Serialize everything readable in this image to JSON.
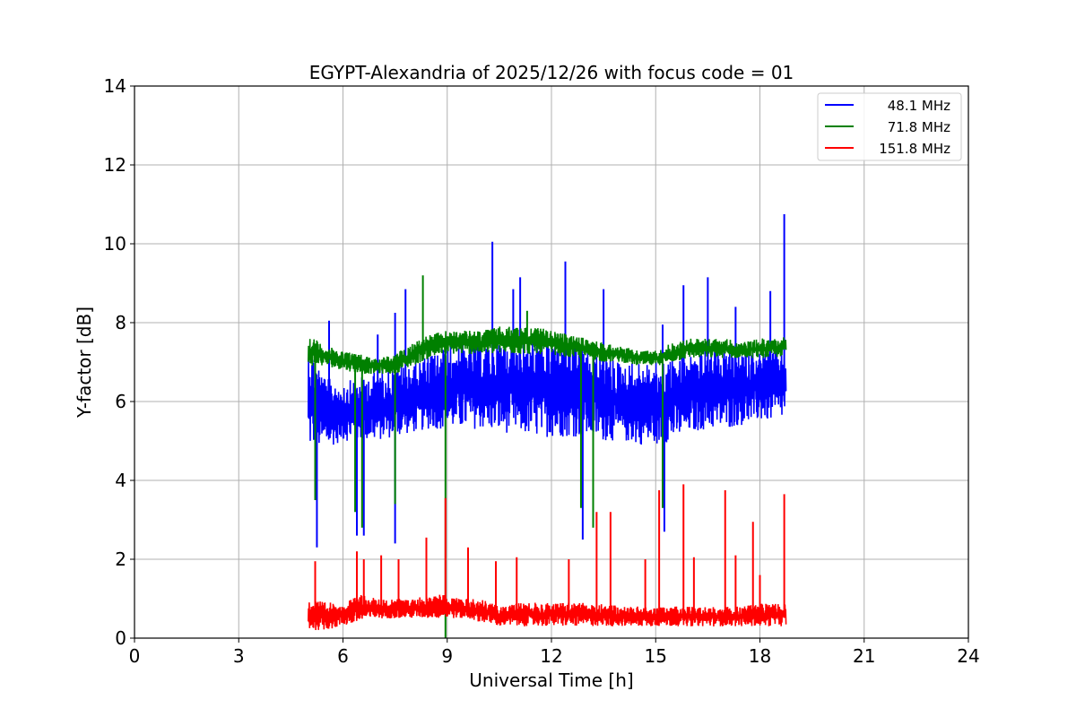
{
  "chart_data": {
    "type": "line",
    "title": "EGYPT-Alexandria of 2025/12/26 with focus code = 01",
    "xlabel": "Universal Time [h]",
    "ylabel": "Y-factor [dB]",
    "xlim": [
      0,
      24
    ],
    "ylim": [
      0,
      14
    ],
    "xticks": [
      0,
      3,
      6,
      9,
      12,
      15,
      18,
      21,
      24
    ],
    "yticks": [
      0,
      2,
      4,
      6,
      8,
      10,
      12,
      14
    ],
    "grid": true,
    "legend_position": "top-right",
    "band_x": [
      5.0,
      5.5,
      6.0,
      6.5,
      7.0,
      7.5,
      8.0,
      8.5,
      9.0,
      9.5,
      10.0,
      10.5,
      11.0,
      11.5,
      12.0,
      12.5,
      13.0,
      13.5,
      14.0,
      14.5,
      15.0,
      15.5,
      16.0,
      16.5,
      17.0,
      17.5,
      18.0,
      18.5,
      18.75
    ],
    "series": [
      {
        "name": "48.1 MHz",
        "color": "#0000ff",
        "low": [
          4.8,
          4.8,
          5.0,
          5.0,
          5.0,
          5.1,
          5.2,
          5.3,
          5.3,
          5.3,
          5.3,
          5.2,
          5.2,
          5.1,
          5.1,
          5.1,
          5.1,
          5.0,
          5.0,
          4.9,
          4.9,
          5.0,
          5.2,
          5.3,
          5.3,
          5.4,
          5.5,
          5.5,
          5.6
        ],
        "high": [
          7.5,
          6.6,
          6.5,
          6.6,
          6.8,
          6.9,
          7.0,
          7.2,
          7.4,
          7.5,
          7.5,
          7.6,
          7.6,
          7.6,
          7.6,
          7.5,
          7.4,
          7.2,
          7.0,
          7.0,
          7.0,
          7.1,
          7.2,
          7.3,
          7.3,
          7.3,
          7.3,
          7.4,
          7.5
        ],
        "spikes": [
          [
            5.6,
            8.05
          ],
          [
            7.0,
            7.7
          ],
          [
            7.5,
            8.25
          ],
          [
            7.8,
            8.85
          ],
          [
            10.3,
            10.05
          ],
          [
            10.9,
            8.85
          ],
          [
            11.1,
            9.15
          ],
          [
            12.4,
            9.55
          ],
          [
            13.5,
            8.85
          ],
          [
            15.2,
            7.95
          ],
          [
            15.8,
            8.95
          ],
          [
            16.5,
            9.15
          ],
          [
            17.3,
            8.4
          ],
          [
            18.3,
            8.8
          ],
          [
            18.7,
            10.75
          ],
          [
            5.25,
            2.3
          ],
          [
            6.4,
            2.6
          ],
          [
            6.6,
            2.6
          ],
          [
            7.5,
            2.4
          ],
          [
            12.9,
            2.5
          ],
          [
            15.25,
            2.7
          ]
        ]
      },
      {
        "name": "71.8 MHz",
        "color": "#008000",
        "low": [
          6.9,
          6.9,
          6.8,
          6.7,
          6.7,
          6.7,
          6.9,
          7.1,
          7.2,
          7.2,
          7.2,
          7.2,
          7.2,
          7.2,
          7.2,
          7.1,
          7.1,
          7.0,
          7.0,
          6.9,
          6.9,
          7.0,
          7.1,
          7.1,
          7.1,
          7.1,
          7.1,
          7.1,
          7.2
        ],
        "high": [
          7.7,
          7.4,
          7.3,
          7.2,
          7.1,
          7.2,
          7.5,
          7.7,
          7.8,
          7.8,
          7.8,
          7.9,
          7.9,
          7.9,
          7.8,
          7.7,
          7.6,
          7.5,
          7.4,
          7.3,
          7.3,
          7.5,
          7.6,
          7.6,
          7.6,
          7.5,
          7.6,
          7.6,
          7.7
        ],
        "spikes": [
          [
            8.3,
            9.2
          ],
          [
            11.3,
            8.3
          ],
          [
            5.2,
            3.5
          ],
          [
            6.35,
            3.2
          ],
          [
            6.55,
            2.8
          ],
          [
            7.5,
            3.4
          ],
          [
            8.95,
            0.0
          ],
          [
            12.85,
            3.3
          ],
          [
            13.2,
            2.8
          ],
          [
            15.2,
            3.3
          ]
        ]
      },
      {
        "name": "151.8 MHz",
        "color": "#ff0000",
        "low": [
          0.2,
          0.2,
          0.3,
          0.4,
          0.5,
          0.5,
          0.5,
          0.5,
          0.5,
          0.5,
          0.4,
          0.3,
          0.3,
          0.3,
          0.3,
          0.3,
          0.3,
          0.3,
          0.3,
          0.3,
          0.3,
          0.3,
          0.3,
          0.3,
          0.3,
          0.3,
          0.3,
          0.3,
          0.3
        ],
        "high": [
          1.0,
          0.9,
          0.9,
          1.1,
          1.0,
          1.0,
          1.0,
          1.1,
          1.1,
          1.0,
          1.0,
          0.8,
          0.9,
          0.9,
          0.9,
          0.9,
          0.9,
          0.9,
          0.8,
          0.8,
          0.8,
          0.8,
          0.8,
          0.8,
          0.8,
          0.8,
          0.9,
          0.9,
          0.9
        ],
        "spikes": [
          [
            5.2,
            1.95
          ],
          [
            6.4,
            2.2
          ],
          [
            6.6,
            2.0
          ],
          [
            7.1,
            2.1
          ],
          [
            7.6,
            2.0
          ],
          [
            8.4,
            2.55
          ],
          [
            8.95,
            3.55
          ],
          [
            9.6,
            2.3
          ],
          [
            10.4,
            1.95
          ],
          [
            11.0,
            2.05
          ],
          [
            12.5,
            2.0
          ],
          [
            13.3,
            3.2
          ],
          [
            13.7,
            3.2
          ],
          [
            14.7,
            2.0
          ],
          [
            15.1,
            3.75
          ],
          [
            15.8,
            3.9
          ],
          [
            16.1,
            2.05
          ],
          [
            17.0,
            3.75
          ],
          [
            17.3,
            2.1
          ],
          [
            17.8,
            2.95
          ],
          [
            18.0,
            1.6
          ],
          [
            18.7,
            3.65
          ]
        ]
      }
    ]
  }
}
